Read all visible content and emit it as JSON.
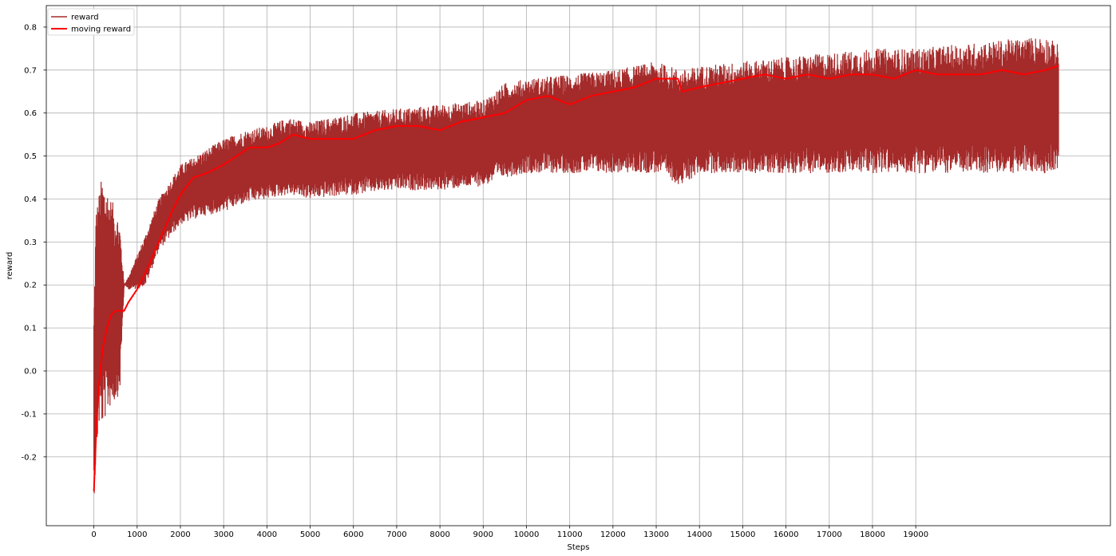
{
  "chart_data": {
    "type": "line",
    "xlabel": "Steps",
    "ylabel": "reward",
    "xlim": [
      -1100,
      23500
    ],
    "ylim": [
      -0.36,
      0.85
    ],
    "xticks": [
      0,
      1000,
      2000,
      3000,
      4000,
      5000,
      6000,
      7000,
      8000,
      9000,
      10000,
      11000,
      12000,
      13000,
      14000,
      15000,
      16000,
      17000,
      18000,
      19000
    ],
    "xtick_labels": [
      "0",
      "1000",
      "2000",
      "3000",
      "4000",
      "5000",
      "6000",
      "7000",
      "8000",
      "9000",
      "10000",
      "11000",
      "12000",
      "13000",
      "14000",
      "15000",
      "16000",
      "17000",
      "18000",
      "19000"
    ],
    "yticks": [
      -0.2,
      -0.1,
      0.0,
      0.1,
      0.2,
      0.3,
      0.4,
      0.5,
      0.6,
      0.7,
      0.8
    ],
    "ytick_labels": [
      "-0.2",
      "-0.1",
      "0.0",
      "0.1",
      "0.2",
      "0.3",
      "0.4",
      "0.5",
      "0.6",
      "0.7",
      "0.8"
    ],
    "grid": true,
    "legend_position": "top-left",
    "series": [
      {
        "name": "reward",
        "color": "#a52a2a",
        "style": "noisy band (per-step reward oscillating between a lower and upper envelope)",
        "x": [
          0,
          50,
          100,
          150,
          200,
          300,
          400,
          500,
          600,
          700,
          800,
          1000,
          1200,
          1500,
          2000,
          2500,
          3000,
          3500,
          4000,
          4500,
          5000,
          6000,
          7000,
          8000,
          9000,
          9500,
          10000,
          11000,
          12000,
          13000,
          13600,
          14000,
          15000,
          16000,
          17000,
          18000,
          19000,
          20000,
          21000,
          22000,
          22300
        ],
        "upper": [
          0.14,
          0.39,
          0.4,
          0.44,
          0.45,
          0.43,
          0.4,
          0.38,
          0.35,
          0.2,
          0.22,
          0.27,
          0.32,
          0.4,
          0.48,
          0.51,
          0.54,
          0.56,
          0.57,
          0.59,
          0.58,
          0.6,
          0.61,
          0.62,
          0.63,
          0.67,
          0.68,
          0.69,
          0.7,
          0.72,
          0.7,
          0.71,
          0.72,
          0.73,
          0.74,
          0.75,
          0.75,
          0.76,
          0.77,
          0.78,
          0.76
        ],
        "lower": [
          -0.3,
          -0.22,
          -0.14,
          -0.12,
          -0.13,
          -0.1,
          -0.08,
          -0.07,
          -0.05,
          0.2,
          0.19,
          0.19,
          0.2,
          0.28,
          0.34,
          0.36,
          0.37,
          0.39,
          0.4,
          0.41,
          0.4,
          0.41,
          0.42,
          0.42,
          0.43,
          0.45,
          0.46,
          0.46,
          0.46,
          0.46,
          0.43,
          0.46,
          0.46,
          0.46,
          0.46,
          0.46,
          0.46,
          0.46,
          0.46,
          0.46,
          0.47
        ]
      },
      {
        "name": "moving reward",
        "color": "#ff0000",
        "x": [
          0,
          50,
          100,
          200,
          300,
          400,
          500,
          600,
          700,
          800,
          1000,
          1200,
          1500,
          1800,
          2000,
          2300,
          2600,
          3000,
          3300,
          3600,
          4000,
          4300,
          4600,
          5000,
          5500,
          6000,
          6500,
          7000,
          7500,
          8000,
          8500,
          9000,
          9500,
          10000,
          10500,
          11000,
          11500,
          12000,
          12500,
          13000,
          13500,
          13600,
          14000,
          14500,
          15000,
          15500,
          16000,
          16500,
          17000,
          17500,
          18000,
          18500,
          19000,
          19500,
          20000,
          20500,
          21000,
          21500,
          22000,
          22300
        ],
        "y": [
          -0.28,
          -0.15,
          -0.05,
          0.05,
          0.1,
          0.13,
          0.14,
          0.14,
          0.14,
          0.16,
          0.19,
          0.23,
          0.3,
          0.37,
          0.41,
          0.45,
          0.46,
          0.48,
          0.5,
          0.52,
          0.52,
          0.53,
          0.55,
          0.54,
          0.54,
          0.54,
          0.56,
          0.57,
          0.57,
          0.56,
          0.58,
          0.59,
          0.6,
          0.63,
          0.64,
          0.62,
          0.64,
          0.65,
          0.66,
          0.68,
          0.68,
          0.65,
          0.66,
          0.67,
          0.68,
          0.69,
          0.68,
          0.69,
          0.68,
          0.69,
          0.69,
          0.68,
          0.7,
          0.69,
          0.69,
          0.69,
          0.7,
          0.69,
          0.7,
          0.71
        ]
      }
    ]
  }
}
